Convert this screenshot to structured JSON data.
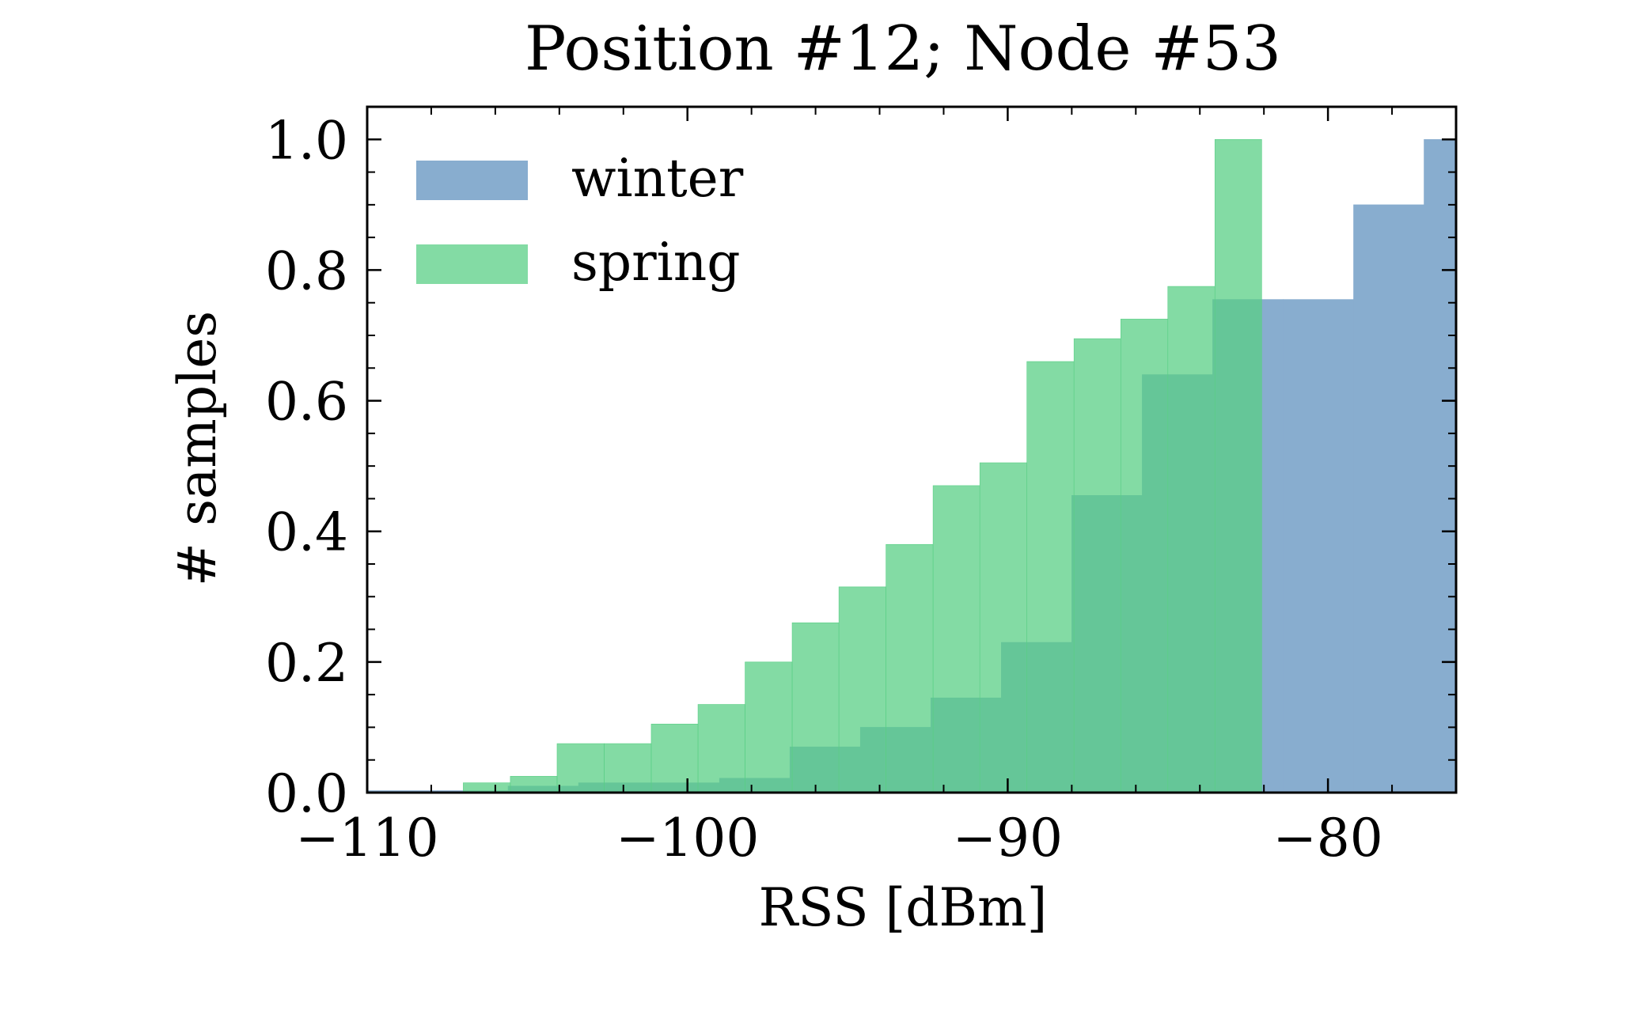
{
  "chart_data": {
    "type": "bar",
    "title": "Position #12; Node #53",
    "xlabel": "RSS [dBm]",
    "ylabel": "# samples",
    "xlim": [
      -110,
      -76
    ],
    "ylim": [
      0,
      1.05
    ],
    "xticks": [
      -110,
      -100,
      -90,
      -80
    ],
    "xtick_labels": [
      "−110",
      "−100",
      "−90",
      "−80"
    ],
    "yticks": [
      0.0,
      0.2,
      0.4,
      0.6,
      0.8,
      1.0
    ],
    "ytick_labels": [
      "0.0",
      "0.2",
      "0.4",
      "0.6",
      "0.8",
      "1.0"
    ],
    "grid": false,
    "legend_position": "top-left",
    "series": [
      {
        "name": "winter",
        "color": "#88adcf",
        "bins": [
          {
            "x0": -110.0,
            "x1": -107.8,
            "value": 0.003
          },
          {
            "x0": -107.8,
            "x1": -105.6,
            "value": 0.003
          },
          {
            "x0": -105.6,
            "x1": -103.4,
            "value": 0.01
          },
          {
            "x0": -103.4,
            "x1": -101.2,
            "value": 0.015
          },
          {
            "x0": -101.2,
            "x1": -99.0,
            "value": 0.015
          },
          {
            "x0": -99.0,
            "x1": -96.8,
            "value": 0.022
          },
          {
            "x0": -96.8,
            "x1": -94.6,
            "value": 0.07
          },
          {
            "x0": -94.6,
            "x1": -92.4,
            "value": 0.1
          },
          {
            "x0": -92.4,
            "x1": -90.2,
            "value": 0.145
          },
          {
            "x0": -90.2,
            "x1": -88.0,
            "value": 0.23
          },
          {
            "x0": -88.0,
            "x1": -85.8,
            "value": 0.455
          },
          {
            "x0": -85.8,
            "x1": -83.6,
            "value": 0.64
          },
          {
            "x0": -83.6,
            "x1": -81.4,
            "value": 0.755
          },
          {
            "x0": -81.4,
            "x1": -79.2,
            "value": 0.755
          },
          {
            "x0": -79.2,
            "x1": -77.0,
            "value": 0.9
          },
          {
            "x0": -77.0,
            "x1": -74.8,
            "value": 1.0
          }
        ]
      },
      {
        "name": "spring",
        "color": "#5acf85",
        "bins": [
          {
            "x0": -107.0,
            "x1": -105.53,
            "value": 0.015
          },
          {
            "x0": -105.53,
            "x1": -104.07,
            "value": 0.025
          },
          {
            "x0": -104.07,
            "x1": -102.6,
            "value": 0.075
          },
          {
            "x0": -102.6,
            "x1": -101.13,
            "value": 0.075
          },
          {
            "x0": -101.13,
            "x1": -99.67,
            "value": 0.105
          },
          {
            "x0": -99.67,
            "x1": -98.2,
            "value": 0.135
          },
          {
            "x0": -98.2,
            "x1": -96.73,
            "value": 0.2
          },
          {
            "x0": -96.73,
            "x1": -95.27,
            "value": 0.26
          },
          {
            "x0": -95.27,
            "x1": -93.8,
            "value": 0.315
          },
          {
            "x0": -93.8,
            "x1": -92.33,
            "value": 0.38
          },
          {
            "x0": -92.33,
            "x1": -90.87,
            "value": 0.47
          },
          {
            "x0": -90.87,
            "x1": -89.4,
            "value": 0.505
          },
          {
            "x0": -89.4,
            "x1": -87.93,
            "value": 0.66
          },
          {
            "x0": -87.93,
            "x1": -86.47,
            "value": 0.695
          },
          {
            "x0": -86.47,
            "x1": -85.0,
            "value": 0.725
          },
          {
            "x0": -85.0,
            "x1": -83.53,
            "value": 0.775
          },
          {
            "x0": -83.53,
            "x1": -82.07,
            "value": 1.0
          }
        ]
      }
    ]
  }
}
